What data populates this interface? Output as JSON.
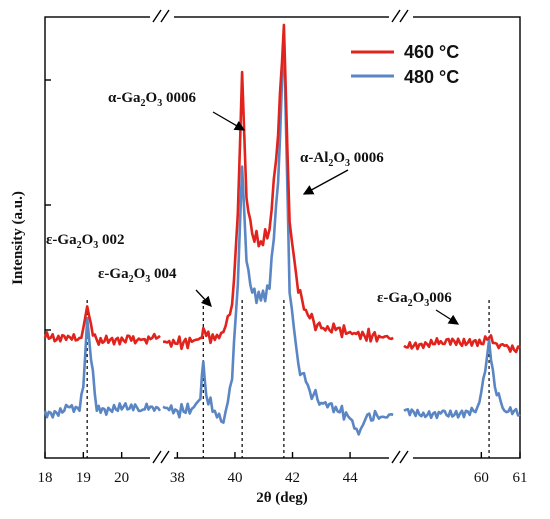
{
  "chart_data": {
    "type": "line",
    "xlabel": "2θ (deg)",
    "ylabel": "Intensity (a.u.)",
    "x_segments": [
      {
        "xlim": [
          18,
          21
        ],
        "ticks": [
          "18",
          "19",
          "20"
        ]
      },
      {
        "xlim": [
          37.5,
          45.7
        ],
        "ticks": [
          "38",
          "40",
          "42",
          "44"
        ]
      },
      {
        "xlim": [
          58,
          61
        ],
        "ticks": [
          "60",
          "61"
        ]
      }
    ],
    "legend": {
      "position": "top-right"
    },
    "series": [
      {
        "name": "460 °C",
        "color": "#e0231c",
        "points": [
          [
            18.0,
            0.305
          ],
          [
            18.3,
            0.3
          ],
          [
            18.6,
            0.31
          ],
          [
            18.9,
            0.305
          ],
          [
            19.0,
            0.33
          ],
          [
            19.1,
            0.385
          ],
          [
            19.2,
            0.34
          ],
          [
            19.35,
            0.3
          ],
          [
            19.6,
            0.31
          ],
          [
            19.9,
            0.305
          ],
          [
            20.2,
            0.31
          ],
          [
            20.5,
            0.3
          ],
          [
            20.8,
            0.305
          ],
          [
            21.0,
            0.31
          ],
          [
            37.5,
            0.295
          ],
          [
            38.0,
            0.29
          ],
          [
            38.5,
            0.295
          ],
          [
            38.8,
            0.305
          ],
          [
            38.9,
            0.33
          ],
          [
            39.0,
            0.31
          ],
          [
            39.3,
            0.3
          ],
          [
            39.6,
            0.32
          ],
          [
            39.9,
            0.39
          ],
          [
            40.1,
            0.62
          ],
          [
            40.25,
            0.98
          ],
          [
            40.4,
            0.66
          ],
          [
            40.6,
            0.57
          ],
          [
            40.9,
            0.55
          ],
          [
            41.2,
            0.58
          ],
          [
            41.5,
            0.82
          ],
          [
            41.7,
            1.1
          ],
          [
            41.9,
            0.6
          ],
          [
            42.2,
            0.42
          ],
          [
            42.6,
            0.355
          ],
          [
            43.0,
            0.33
          ],
          [
            43.5,
            0.325
          ],
          [
            44.0,
            0.32
          ],
          [
            44.5,
            0.31
          ],
          [
            45.0,
            0.31
          ],
          [
            45.5,
            0.305
          ],
          [
            58.0,
            0.285
          ],
          [
            58.5,
            0.28
          ],
          [
            59.0,
            0.29
          ],
          [
            59.5,
            0.285
          ],
          [
            60.0,
            0.29
          ],
          [
            60.2,
            0.305
          ],
          [
            60.4,
            0.29
          ],
          [
            60.6,
            0.285
          ],
          [
            61.0,
            0.28
          ]
        ]
      },
      {
        "name": "480 °C",
        "color": "#5b86c4",
        "points": [
          [
            18.0,
            0.12
          ],
          [
            18.3,
            0.115
          ],
          [
            18.6,
            0.13
          ],
          [
            18.9,
            0.12
          ],
          [
            19.0,
            0.18
          ],
          [
            19.1,
            0.355
          ],
          [
            19.2,
            0.25
          ],
          [
            19.35,
            0.12
          ],
          [
            19.6,
            0.11
          ],
          [
            19.9,
            0.12
          ],
          [
            20.2,
            0.125
          ],
          [
            20.5,
            0.12
          ],
          [
            20.8,
            0.13
          ],
          [
            21.0,
            0.12
          ],
          [
            37.5,
            0.13
          ],
          [
            38.0,
            0.12
          ],
          [
            38.5,
            0.125
          ],
          [
            38.8,
            0.15
          ],
          [
            38.9,
            0.245
          ],
          [
            39.0,
            0.16
          ],
          [
            39.3,
            0.12
          ],
          [
            39.6,
            0.09
          ],
          [
            39.9,
            0.2
          ],
          [
            40.1,
            0.44
          ],
          [
            40.25,
            0.74
          ],
          [
            40.4,
            0.5
          ],
          [
            40.6,
            0.42
          ],
          [
            40.9,
            0.4
          ],
          [
            41.2,
            0.43
          ],
          [
            41.5,
            0.7
          ],
          [
            41.7,
            1.08
          ],
          [
            41.9,
            0.42
          ],
          [
            42.2,
            0.24
          ],
          [
            42.6,
            0.17
          ],
          [
            43.0,
            0.14
          ],
          [
            43.5,
            0.13
          ],
          [
            44.0,
            0.1
          ],
          [
            44.3,
            0.06
          ],
          [
            44.6,
            0.11
          ],
          [
            45.0,
            0.1
          ],
          [
            45.5,
            0.11
          ],
          [
            58.0,
            0.12
          ],
          [
            58.5,
            0.115
          ],
          [
            59.0,
            0.12
          ],
          [
            59.5,
            0.12
          ],
          [
            59.9,
            0.13
          ],
          [
            60.1,
            0.22
          ],
          [
            60.2,
            0.3
          ],
          [
            60.35,
            0.18
          ],
          [
            60.6,
            0.12
          ],
          [
            61.0,
            0.11
          ]
        ]
      }
    ],
    "annotations": [
      {
        "id": "eps002",
        "text_main": "ε-Ga",
        "sub1": "2",
        "mid": "O",
        "sub2": "3",
        "tail": " 002",
        "x": 19.1,
        "arrow": false
      },
      {
        "id": "eps004",
        "text_main": "ε-Ga",
        "sub1": "2",
        "mid": "O",
        "sub2": "3",
        "tail": " 004",
        "x": 38.9,
        "arrow": true
      },
      {
        "id": "alpha0006",
        "text_main": "α-Ga",
        "sub1": "2",
        "mid": "O",
        "sub2": "3",
        "tail": " 0006",
        "x": 40.25,
        "arrow": true
      },
      {
        "id": "al0006",
        "text_main": "α-Al",
        "sub1": "2",
        "mid": "O",
        "sub2": "3",
        "tail": " 0006",
        "x": 41.7,
        "arrow": true
      },
      {
        "id": "eps006",
        "text_main": "ε-Ga",
        "sub1": "2",
        "mid": "O",
        "sub2": "3",
        "tail": "006",
        "x": 60.2,
        "arrow": true
      }
    ],
    "reference_lines_x": [
      19.1,
      38.9,
      40.25,
      41.7,
      60.2
    ]
  }
}
